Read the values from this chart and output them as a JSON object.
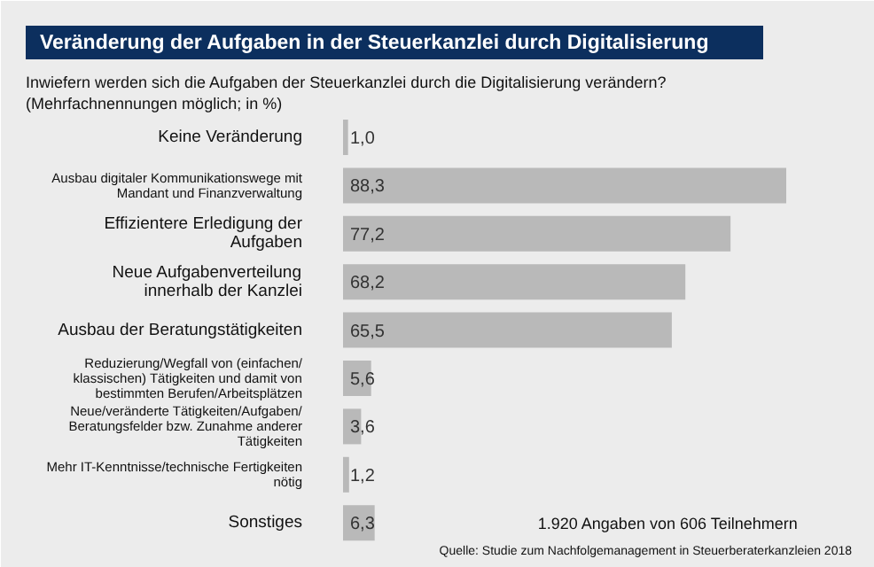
{
  "chart_data": {
    "type": "bar",
    "orientation": "horizontal",
    "relative": false,
    "title": "Veränderung der Aufgaben in der Steuerkanzlei durch Digitalisierung",
    "subtitle": "Inwiefern werden sich die Aufgaben der Steuerkanzlei durch die Digitalisierung verändern? (Mehrfachnennungen möglich; in %)",
    "categories": [
      "Keine Veränderung",
      "Ausbau digitaler Kommunikationswege mit Mandant und Finanzverwaltung",
      "Effizientere Erledigung der Aufgaben",
      "Neue Aufgabenverteilung innerhalb der Kanzlei",
      "Ausbau der Beratungstätigkeiten",
      "Reduzierung/Wegfall von (einfachen/ klassischen) Tätigkeiten und damit von bestimmten Berufen/Arbeitsplätzen",
      "Neue/veränderte Tätigkeiten/Aufgaben/ Beratungsfelder bzw. Zunahme anderer Tätigkeiten",
      "Mehr IT-Kenntnisse/technische Fertigkeiten nötig",
      "Sonstiges"
    ],
    "values": [
      1.0,
      88.3,
      77.2,
      68.2,
      65.5,
      5.6,
      3.6,
      1.2,
      6.3
    ],
    "value_labels": [
      "1,0",
      "88,3",
      "77,2",
      "68,2",
      "65,5",
      "5,6",
      "3,6",
      "1,2",
      "6,3"
    ],
    "color": "#b9b9b9",
    "annotations": [
      "1.920 Angaben von 606 Teilnehmern",
      "Quelle: Studie zum Nachfolgemanagement in Steuerberaterkanzleien 2018"
    ]
  }
}
